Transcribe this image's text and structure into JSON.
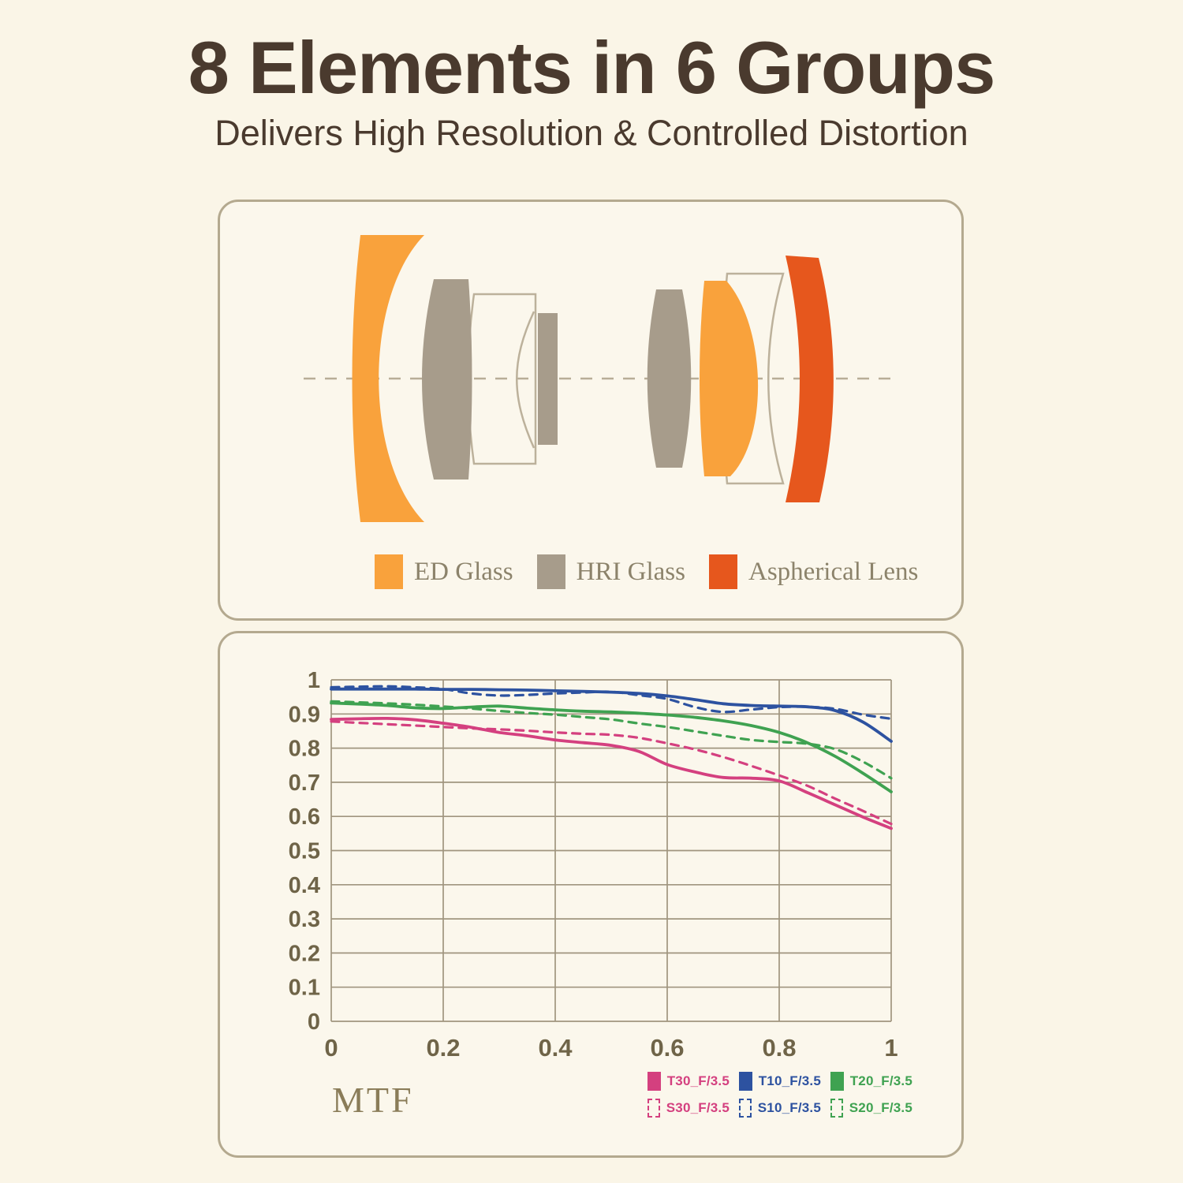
{
  "header": {
    "title": "8 Elements in 6 Groups",
    "subtitle": "Delivers High Resolution & Controlled Distortion"
  },
  "colors": {
    "background": "#faf5e7",
    "title_text": "#4a3a2e",
    "box_border": "#b4a98f",
    "ed_glass": "#f9a23c",
    "hri_glass": "#a79c8b",
    "aspherical": "#e6571d",
    "element_outline": "#bcb19b",
    "optical_axis": "#b8ad97",
    "grid": "#a0957f",
    "tick_text": "#6f6448",
    "mtf_text": "#8a7c58",
    "lens_legend_text": "#8c836b",
    "t30_pink": "#d4407f",
    "t10_blue": "#2d52a0",
    "t20_green": "#3fa251"
  },
  "lens_diagram": {
    "legend": [
      {
        "label": "ED Glass",
        "color": "#f9a23c"
      },
      {
        "label": "HRI Glass",
        "color": "#a79c8b"
      },
      {
        "label": "Aspherical Lens",
        "color": "#e6571d"
      }
    ]
  },
  "chart_data": {
    "type": "line",
    "title": "MTF",
    "xlabel": "",
    "ylabel": "",
    "xlim": [
      0,
      1
    ],
    "ylim": [
      0,
      1
    ],
    "grid": true,
    "legend_position": "bottom-right",
    "x_ticks": {
      "values": [
        0,
        0.2,
        0.4,
        0.6,
        0.8,
        1
      ],
      "labels": [
        "0",
        "0.2",
        "0.4",
        "0.6",
        "0.8",
        "1"
      ]
    },
    "y_ticks": {
      "values": [
        0,
        0.1,
        0.2,
        0.3,
        0.4,
        0.5,
        0.6,
        0.7,
        0.8,
        0.9,
        1
      ],
      "labels": [
        "0",
        "0.1",
        "0.2",
        "0.3",
        "0.4",
        "0.5",
        "0.6",
        "0.7",
        "0.8",
        "0.9",
        "1"
      ]
    },
    "x": [
      0,
      0.05,
      0.1,
      0.15,
      0.2,
      0.25,
      0.3,
      0.35,
      0.4,
      0.45,
      0.5,
      0.55,
      0.6,
      0.65,
      0.7,
      0.75,
      0.8,
      0.85,
      0.9,
      0.95,
      1
    ],
    "series": [
      {
        "name": "T30_F/3.5",
        "style": "solid",
        "color": "#d4407f",
        "values": [
          0.884,
          0.886,
          0.887,
          0.883,
          0.873,
          0.861,
          0.846,
          0.836,
          0.824,
          0.816,
          0.808,
          0.79,
          0.752,
          0.73,
          0.714,
          0.712,
          0.704,
          0.67,
          0.634,
          0.598,
          0.565
        ]
      },
      {
        "name": "T10_F/3.5",
        "style": "solid",
        "color": "#2d52a0",
        "values": [
          0.973,
          0.973,
          0.973,
          0.973,
          0.972,
          0.972,
          0.971,
          0.97,
          0.968,
          0.966,
          0.964,
          0.96,
          0.953,
          0.942,
          0.93,
          0.925,
          0.923,
          0.921,
          0.91,
          0.876,
          0.82
        ]
      },
      {
        "name": "T20_F/3.5",
        "style": "solid",
        "color": "#3fa251",
        "values": [
          0.932,
          0.929,
          0.925,
          0.918,
          0.916,
          0.92,
          0.923,
          0.917,
          0.912,
          0.908,
          0.906,
          0.902,
          0.897,
          0.89,
          0.88,
          0.866,
          0.846,
          0.816,
          0.776,
          0.726,
          0.672
        ]
      },
      {
        "name": "S30_F/3.5",
        "style": "dashed",
        "color": "#d4407f",
        "values": [
          0.878,
          0.874,
          0.87,
          0.866,
          0.862,
          0.858,
          0.855,
          0.851,
          0.846,
          0.842,
          0.839,
          0.83,
          0.814,
          0.796,
          0.774,
          0.748,
          0.72,
          0.69,
          0.652,
          0.616,
          0.578
        ]
      },
      {
        "name": "S10_F/3.5",
        "style": "dashed",
        "color": "#2d52a0",
        "values": [
          0.978,
          0.98,
          0.981,
          0.978,
          0.973,
          0.96,
          0.954,
          0.956,
          0.96,
          0.963,
          0.965,
          0.955,
          0.944,
          0.92,
          0.906,
          0.913,
          0.92,
          0.921,
          0.915,
          0.898,
          0.886
        ]
      },
      {
        "name": "S20_F/3.5",
        "style": "dashed",
        "color": "#3fa251",
        "values": [
          0.937,
          0.934,
          0.931,
          0.927,
          0.922,
          0.916,
          0.909,
          0.903,
          0.898,
          0.891,
          0.884,
          0.872,
          0.862,
          0.849,
          0.836,
          0.824,
          0.818,
          0.813,
          0.797,
          0.76,
          0.712
        ]
      }
    ],
    "legend": [
      {
        "label": "T30_F/3.5",
        "color": "#d4407f",
        "style": "solid"
      },
      {
        "label": "T10_F/3.5",
        "color": "#2d52a0",
        "style": "solid"
      },
      {
        "label": "T20_F/3.5",
        "color": "#3fa251",
        "style": "solid"
      },
      {
        "label": "S30_F/3.5",
        "color": "#d4407f",
        "style": "dashed"
      },
      {
        "label": "S10_F/3.5",
        "color": "#2d52a0",
        "style": "dashed"
      },
      {
        "label": "S20_F/3.5",
        "color": "#3fa251",
        "style": "dashed"
      }
    ]
  }
}
